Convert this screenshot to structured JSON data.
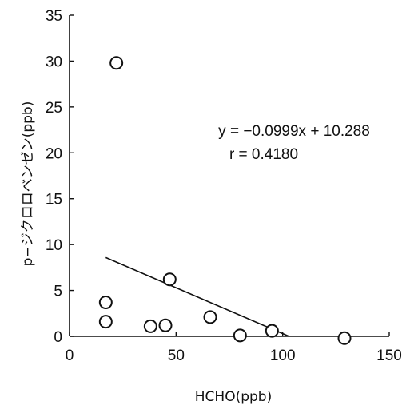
{
  "chart_data": {
    "type": "scatter",
    "title": "",
    "xlabel": "HCHO(ppb)",
    "ylabel": "p−ジクロロベンゼン(ppb)",
    "xlim": [
      0,
      150
    ],
    "ylim": [
      0,
      35
    ],
    "x_ticks": [
      0,
      50,
      100,
      150
    ],
    "y_ticks": [
      0,
      5,
      10,
      15,
      20,
      25,
      30,
      35
    ],
    "grid": false,
    "points": [
      {
        "x": 17,
        "y": 3.7
      },
      {
        "x": 17,
        "y": 1.6
      },
      {
        "x": 22,
        "y": 29.8
      },
      {
        "x": 38,
        "y": 1.1
      },
      {
        "x": 45,
        "y": 1.2
      },
      {
        "x": 47,
        "y": 6.2
      },
      {
        "x": 66,
        "y": 2.1
      },
      {
        "x": 80,
        "y": 0.1
      },
      {
        "x": 95,
        "y": 0.6
      },
      {
        "x": 129,
        "y": -0.2
      }
    ],
    "trendline": {
      "slope": -0.0999,
      "intercept": 10.288,
      "x_start": 17,
      "x_end": 103
    },
    "annotations": [
      "y = −0.0999x + 10.288",
      "r = 0.4180"
    ],
    "colors": {
      "marker_stroke": "#111111",
      "marker_fill": "#ffffff",
      "line": "#111111",
      "axis": "#111111"
    }
  }
}
